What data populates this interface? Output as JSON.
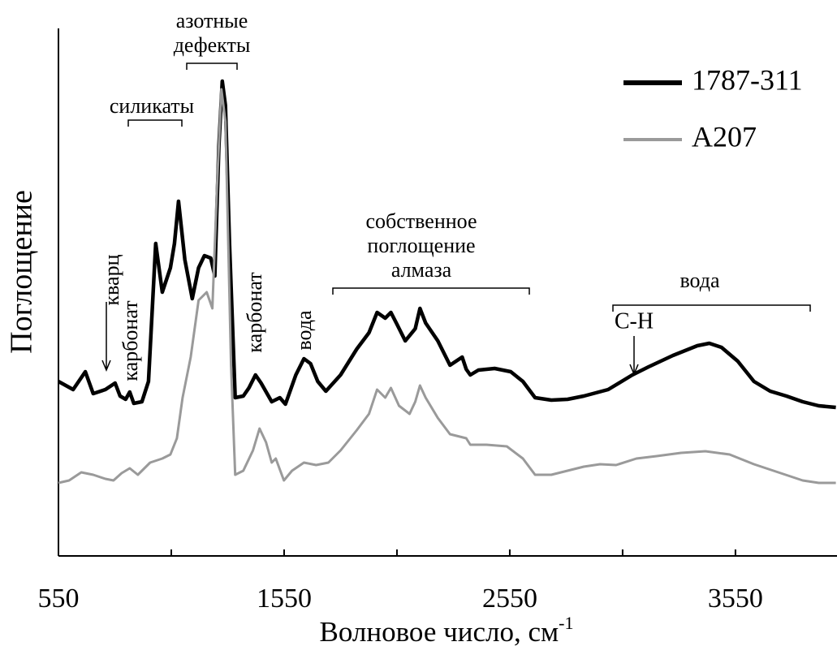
{
  "chart_data": {
    "type": "line",
    "x_label": "Волновое число, см",
    "x_label_sup": "-1",
    "y_label": "Поглощение",
    "xlim": [
      550,
      4000
    ],
    "xticks": [
      550,
      1550,
      2550,
      3550
    ],
    "xminorticks": [
      1050,
      2050,
      3050
    ],
    "ylim": [
      0,
      650
    ],
    "legend": "upper right",
    "series": [
      {
        "name": "1787-311",
        "color": "#000000",
        "x": [
          550,
          615,
          669,
          704,
          758,
          801,
          823,
          848,
          866,
          884,
          920,
          949,
          981,
          1010,
          1046,
          1064,
          1082,
          1110,
          1143,
          1171,
          1197,
          1225,
          1243,
          1261,
          1276,
          1290,
          1308,
          1333,
          1369,
          1394,
          1423,
          1448,
          1495,
          1531,
          1556,
          1602,
          1638,
          1667,
          1699,
          1735,
          1800,
          1872,
          1926,
          1962,
          1998,
          2023,
          2051,
          2087,
          2131,
          2152,
          2177,
          2231,
          2285,
          2339,
          2357,
          2375,
          2411,
          2483,
          2554,
          2608,
          2662,
          2734,
          2806,
          2878,
          2986,
          3093,
          3165,
          3273,
          3381,
          3434,
          3488,
          3560,
          3632,
          3704,
          3776,
          3848,
          3919,
          3995
        ],
        "values": [
          215,
          205,
          227,
          200,
          205,
          213,
          197,
          193,
          202,
          188,
          190,
          215,
          385,
          325,
          355,
          385,
          437,
          365,
          317,
          355,
          370,
          367,
          345,
          505,
          585,
          555,
          385,
          195,
          197,
          207,
          223,
          213,
          190,
          195,
          187,
          223,
          243,
          237,
          215,
          203,
          223,
          255,
          275,
          300,
          293,
          300,
          285,
          265,
          280,
          305,
          287,
          265,
          235,
          245,
          230,
          223,
          229,
          231,
          227,
          215,
          195,
          192,
          193,
          197,
          205,
          223,
          233,
          247,
          259,
          262,
          257,
          240,
          215,
          203,
          197,
          190,
          185,
          183
        ]
      },
      {
        "name": "A207",
        "color": "#9a9a9a",
        "x": [
          550,
          597,
          651,
          704,
          758,
          794,
          830,
          866,
          902,
          956,
          1010,
          1046,
          1075,
          1100,
          1136,
          1171,
          1207,
          1232,
          1254,
          1272,
          1290,
          1315,
          1333,
          1369,
          1412,
          1441,
          1470,
          1495,
          1513,
          1549,
          1585,
          1638,
          1692,
          1746,
          1800,
          1872,
          1926,
          1962,
          1998,
          2023,
          2059,
          2106,
          2131,
          2152,
          2177,
          2231,
          2285,
          2357,
          2375,
          2447,
          2537,
          2608,
          2662,
          2734,
          2806,
          2878,
          2950,
          3021,
          3111,
          3201,
          3309,
          3417,
          3524,
          3632,
          3740,
          3848,
          3919,
          3995
        ],
        "values": [
          90,
          93,
          103,
          100,
          95,
          93,
          102,
          108,
          100,
          115,
          120,
          125,
          145,
          195,
          245,
          315,
          325,
          305,
          465,
          575,
          535,
          235,
          100,
          105,
          130,
          157,
          140,
          115,
          120,
          93,
          105,
          115,
          112,
          115,
          130,
          155,
          175,
          205,
          195,
          207,
          185,
          175,
          190,
          210,
          195,
          170,
          150,
          145,
          137,
          137,
          135,
          120,
          100,
          100,
          105,
          110,
          113,
          112,
          120,
          123,
          127,
          129,
          125,
          113,
          103,
          93,
          90,
          90
        ]
      }
    ],
    "annotations": [
      {
        "lines": [
          "азотные",
          "дефекты"
        ]
      },
      {
        "lines": [
          "силикаты"
        ]
      },
      {
        "lines": [
          "кварц"
        ]
      },
      {
        "lines": [
          "карбонат"
        ]
      },
      {
        "lines": [
          "карбонат"
        ]
      },
      {
        "lines": [
          "вода"
        ]
      },
      {
        "lines": [
          "собственное",
          "поглощение",
          "алмаза"
        ]
      },
      {
        "lines": [
          "вода"
        ]
      },
      {
        "lines": [
          "C-H"
        ]
      }
    ]
  }
}
